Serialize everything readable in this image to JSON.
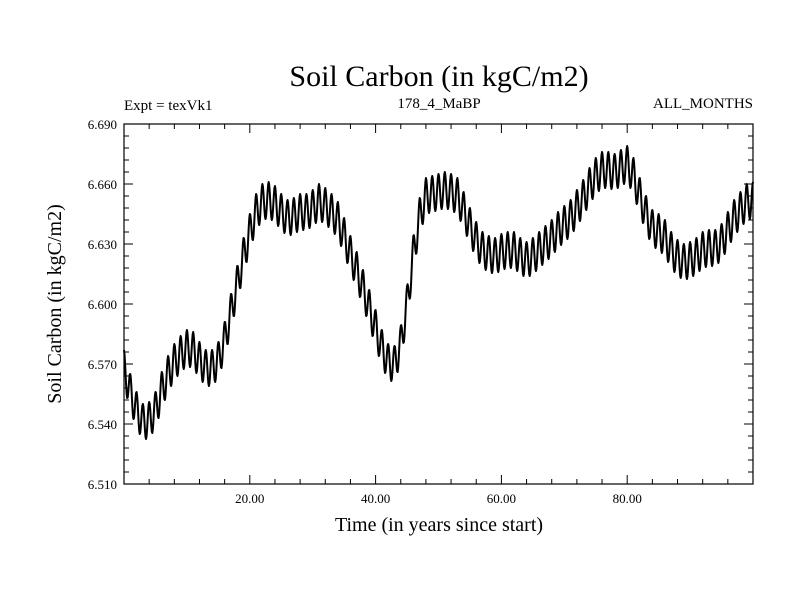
{
  "chart_data": {
    "type": "line",
    "title": "Soil Carbon (in kgC/m2)",
    "subtitle_left": "Expt = texVk1",
    "subtitle_center": "178_4_MaBP",
    "subtitle_right": "ALL_MONTHS",
    "xlabel": "Time (in years since start)",
    "ylabel": "Soil Carbon (in kgC/m2)",
    "xlim": [
      0,
      100
    ],
    "ylim": [
      6.51,
      6.69
    ],
    "x_ticks": [
      20,
      40,
      60,
      80
    ],
    "x_tick_labels": [
      "20.00",
      "40.00",
      "60.00",
      "80.00"
    ],
    "y_ticks": [
      6.51,
      6.54,
      6.57,
      6.6,
      6.63,
      6.66,
      6.69
    ],
    "y_tick_labels": [
      "6.510",
      "6.540",
      "6.570",
      "6.600",
      "6.630",
      "6.660",
      "6.690"
    ],
    "series": [
      {
        "name": "Soil Carbon",
        "color": "#000000",
        "annual_trend": {
          "x": [
            0,
            1,
            2,
            3,
            4,
            5,
            6,
            7,
            8,
            9,
            10,
            11,
            12,
            13,
            14,
            15,
            16,
            17,
            18,
            19,
            20,
            21,
            22,
            23,
            24,
            25,
            26,
            27,
            28,
            29,
            30,
            31,
            32,
            33,
            34,
            35,
            36,
            37,
            38,
            39,
            40,
            41,
            42,
            43,
            44,
            45,
            46,
            47,
            48,
            49,
            50,
            51,
            52,
            53,
            54,
            55,
            56,
            57,
            58,
            59,
            60,
            61,
            62,
            63,
            64,
            65,
            66,
            67,
            68,
            69,
            70,
            71,
            72,
            73,
            74,
            75,
            76,
            77,
            78,
            79,
            80,
            81,
            82,
            83,
            84,
            85,
            86,
            87,
            88,
            89,
            90,
            91,
            92,
            93,
            94,
            95,
            96,
            97,
            98,
            99,
            100
          ],
          "y": [
            6.568,
            6.556,
            6.547,
            6.541,
            6.542,
            6.547,
            6.557,
            6.565,
            6.571,
            6.575,
            6.578,
            6.577,
            6.572,
            6.568,
            6.568,
            6.572,
            6.582,
            6.596,
            6.61,
            6.624,
            6.636,
            6.646,
            6.651,
            6.652,
            6.65,
            6.646,
            6.643,
            6.644,
            6.646,
            6.646,
            6.648,
            6.651,
            6.649,
            6.646,
            6.642,
            6.634,
            6.625,
            6.617,
            6.608,
            6.598,
            6.588,
            6.578,
            6.571,
            6.57,
            6.58,
            6.6,
            6.625,
            6.644,
            6.654,
            6.655,
            6.656,
            6.657,
            6.656,
            6.654,
            6.647,
            6.639,
            6.632,
            6.627,
            6.625,
            6.624,
            6.626,
            6.627,
            6.627,
            6.624,
            6.622,
            6.624,
            6.627,
            6.63,
            6.633,
            6.637,
            6.64,
            6.643,
            6.648,
            6.653,
            6.659,
            6.664,
            6.667,
            6.667,
            6.666,
            6.668,
            6.67,
            6.664,
            6.654,
            6.645,
            6.638,
            6.636,
            6.633,
            6.627,
            6.623,
            6.621,
            6.622,
            6.624,
            6.627,
            6.628,
            6.628,
            6.631,
            6.637,
            6.643,
            6.647,
            6.651,
            6.652
          ]
        },
        "seasonal_cycle_amplitude": 0.018,
        "samples_per_year": 12
      }
    ]
  }
}
